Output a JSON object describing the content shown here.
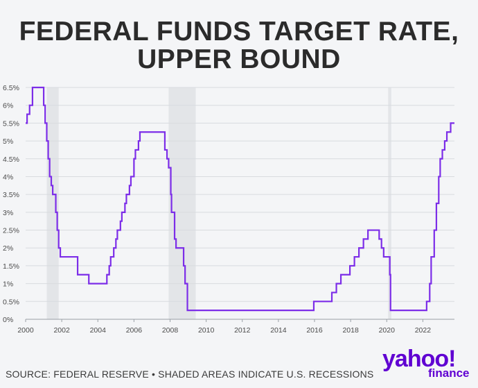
{
  "title_line1": "FEDERAL FUNDS TARGET RATE,",
  "title_line2": "UPPER BOUND",
  "footer": "SOURCE: FEDERAL RESERVE • SHADED AREAS INDICATE U.S. RECESSIONS",
  "logo": {
    "brand": "yahoo!",
    "sub": "finance",
    "color": "#6001d2"
  },
  "chart_data": {
    "type": "line",
    "step": true,
    "title": "FEDERAL FUNDS TARGET RATE, UPPER BOUND",
    "xlabel": "",
    "ylabel": "",
    "xlim": [
      2000,
      2023.75
    ],
    "ylim": [
      0,
      6.5
    ],
    "xticks": [
      "2000",
      "2002",
      "2004",
      "2006",
      "2008",
      "2010",
      "2012",
      "2014",
      "2016",
      "2018",
      "2020",
      "2022"
    ],
    "yticks": [
      "0%",
      "0.5%",
      "1%",
      "1.5%",
      "2%",
      "2.5%",
      "3%",
      "3.5%",
      "4%",
      "4.5%",
      "5%",
      "5.5%",
      "6%",
      "6.5%"
    ],
    "grid": true,
    "line_color": "#7c2de8",
    "recession_color": "#e3e5e8",
    "recessions": [
      [
        2001.17,
        2001.83
      ],
      [
        2007.92,
        2009.42
      ],
      [
        2020.08,
        2020.25
      ]
    ],
    "series": [
      {
        "x": [
          2000.0,
          2000.08,
          2000.22,
          2000.38,
          2001.0,
          2001.08,
          2001.17,
          2001.25,
          2001.33,
          2001.42,
          2001.5,
          2001.67,
          2001.75,
          2001.83,
          2001.92,
          2002.0,
          2002.88,
          2003.5,
          2004.5,
          2004.63,
          2004.71,
          2004.88,
          2005.0,
          2005.08,
          2005.25,
          2005.33,
          2005.5,
          2005.58,
          2005.75,
          2005.83,
          2006.0,
          2006.08,
          2006.25,
          2006.33,
          2006.5,
          2007.71,
          2007.83,
          2007.92,
          2008.04,
          2008.08,
          2008.25,
          2008.33,
          2008.75,
          2008.83,
          2008.96,
          2015.96,
          2016.96,
          2017.21,
          2017.46,
          2017.96,
          2018.21,
          2018.46,
          2018.71,
          2018.96,
          2019.58,
          2019.71,
          2019.83,
          2020.17,
          2020.21,
          2022.21,
          2022.38,
          2022.46,
          2022.63,
          2022.75,
          2022.88,
          2022.96,
          2023.08,
          2023.21,
          2023.33,
          2023.54,
          2023.75
        ],
        "y": [
          5.5,
          5.75,
          6.0,
          6.5,
          6.0,
          5.5,
          5.0,
          4.5,
          4.0,
          3.75,
          3.5,
          3.0,
          2.5,
          2.0,
          1.75,
          1.75,
          1.25,
          1.0,
          1.25,
          1.5,
          1.75,
          2.0,
          2.25,
          2.5,
          2.75,
          3.0,
          3.25,
          3.5,
          3.75,
          4.0,
          4.5,
          4.75,
          5.0,
          5.25,
          5.25,
          4.75,
          4.5,
          4.25,
          3.5,
          3.0,
          2.25,
          2.0,
          1.5,
          1.0,
          0.25,
          0.5,
          0.75,
          1.0,
          1.25,
          1.5,
          1.75,
          2.0,
          2.25,
          2.5,
          2.25,
          2.0,
          1.75,
          1.25,
          0.25,
          0.5,
          1.0,
          1.75,
          2.5,
          3.25,
          4.0,
          4.5,
          4.75,
          5.0,
          5.25,
          5.5,
          5.5
        ]
      }
    ]
  }
}
